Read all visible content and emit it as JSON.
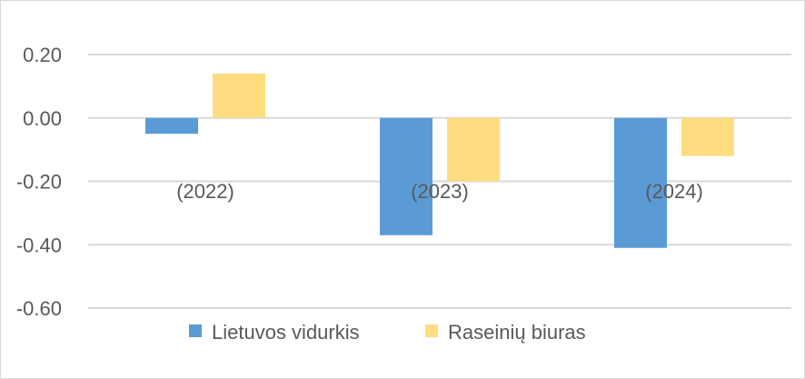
{
  "chart_data": {
    "type": "bar",
    "categories": [
      "(2022)",
      "(2023)",
      "(2024)"
    ],
    "series": [
      {
        "name": "Lietuvos vidurkis",
        "values": [
          -0.05,
          -0.37,
          -0.41
        ],
        "color": "#5b9bd5"
      },
      {
        "name": "Raseinių biuras",
        "values": [
          0.14,
          -0.2,
          -0.12
        ],
        "color": "#ffdc7f"
      }
    ],
    "yticks": [
      "0.20",
      "0.00",
      "-0.20",
      "-0.40",
      "-0.60"
    ],
    "ylim": [
      -0.6,
      0.2
    ],
    "grid": true,
    "legend": "bottom",
    "title": "",
    "xlabel": "",
    "ylabel": ""
  }
}
